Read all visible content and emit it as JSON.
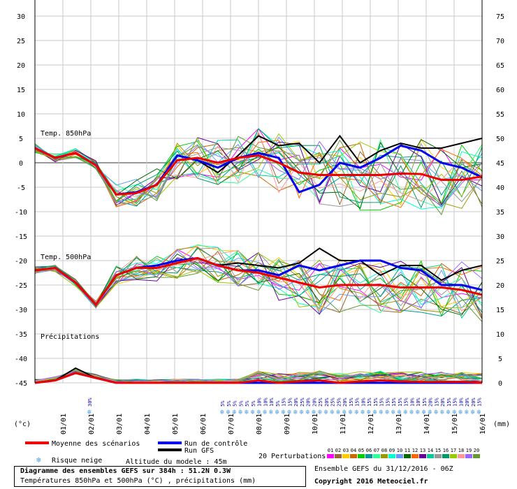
{
  "chart_data": {
    "type": "line",
    "title": "Diagramme des ensembles GEFS sur 384h : 51.2N 0.3W",
    "subtitle": "Températures 850hPa et 500hPa (°C) , précipitations (mm)",
    "left_axis_unit": "(°c)",
    "right_axis_unit": "(mm)",
    "left_axis_ticks": [
      30,
      25,
      20,
      15,
      10,
      5,
      0,
      -5,
      -10,
      -15,
      -20,
      -25,
      -30,
      -35,
      -40,
      -45
    ],
    "right_axis_ticks": [
      75,
      70,
      65,
      60,
      55,
      50,
      45,
      40,
      35,
      30,
      25,
      20,
      15,
      10,
      5,
      0
    ],
    "ylim_temp": [
      -45,
      30
    ],
    "ylim_precip": [
      0,
      75
    ],
    "x_labels": [
      "01/01",
      "02/01",
      "03/01",
      "04/01",
      "05/01",
      "06/01",
      "07/01",
      "08/01",
      "09/01",
      "10/01",
      "11/01",
      "12/01",
      "13/01",
      "14/01",
      "15/01",
      "16/01"
    ],
    "panel_labels": {
      "t850": "Temp. 850hPa",
      "t500": "Temp. 500hPa",
      "precip": "Précipitations"
    },
    "snow_risk": [
      "30%",
      "5%",
      "5%",
      "5%",
      "5%",
      "5%",
      "5%",
      "10%",
      "10%",
      "10%",
      "5%",
      "15%",
      "15%",
      "20%",
      "25%",
      "20%",
      "20%",
      "25%",
      "20%",
      "25%",
      "25%",
      "20%",
      "15%",
      "15%",
      "10%",
      "15%",
      "15%",
      "15%",
      "15%",
      "15%",
      "15%",
      "15%",
      "10%",
      "10%",
      "15%",
      "20%",
      "15%",
      "20%",
      "15%",
      "15%",
      "10%",
      "20%",
      "20%",
      "15%"
    ],
    "series": [
      {
        "name": "Moyenne des scénarios",
        "color": "#ee0000",
        "t850": [
          3,
          1,
          2,
          -0.5,
          -6.5,
          -6.2,
          -4.5,
          0.5,
          1,
          0,
          1,
          1.5,
          0,
          -2,
          -2.5,
          -2.5,
          -2.5,
          -2.5,
          -2.2,
          -2.3,
          -3.5,
          -3.5,
          -2.8
        ],
        "t500": [
          -22,
          -21.5,
          -24.5,
          -29,
          -23,
          -21.5,
          -21.5,
          -20.5,
          -19.5,
          -21,
          -22,
          -22.5,
          -23.5,
          -24.5,
          -25.5,
          -25,
          -25,
          -25,
          -25.5,
          -25.5,
          -25.5,
          -26,
          -27
        ],
        "precip": [
          0,
          0.5,
          2,
          1,
          0,
          0,
          0,
          0,
          0,
          0,
          0,
          0.5,
          0,
          0.3,
          0.5,
          0,
          0.3,
          0.5,
          0.3,
          0.2,
          0.2,
          0.2,
          0
        ]
      },
      {
        "name": "Run de contrôle",
        "color": "#0000ee",
        "t850": [
          3,
          1,
          2,
          -0.5,
          -6.5,
          -6,
          -4.5,
          1.5,
          0.5,
          -1,
          1,
          2,
          1,
          -6,
          -4.5,
          0,
          -1,
          1,
          3.5,
          2.5,
          0,
          -1,
          -3
        ],
        "t500": [
          -22,
          -21.5,
          -24.5,
          -29,
          -23,
          -21.5,
          -21,
          -20,
          -19.5,
          -21,
          -22,
          -22,
          -23,
          -21,
          -22,
          -21,
          -20,
          -20,
          -21.5,
          -22,
          -25,
          -25,
          -26
        ],
        "precip": [
          0,
          0.5,
          2,
          1,
          0,
          0,
          0,
          0,
          0,
          0,
          0,
          0,
          0,
          0,
          0,
          0,
          0,
          0,
          0,
          0,
          0,
          0,
          0
        ]
      },
      {
        "name": "Run GFS",
        "color": "#000000",
        "t850": [
          3,
          1,
          2,
          -0.5,
          -6.5,
          -6,
          -4.5,
          1.5,
          0.5,
          -2,
          1.5,
          5.5,
          3.5,
          4,
          0,
          5.5,
          0,
          2.5,
          4,
          3,
          3,
          4,
          5
        ],
        "t500": [
          -22,
          -21.5,
          -24.5,
          -29,
          -23,
          -21.5,
          -21,
          -20,
          -19.5,
          -21,
          -20.5,
          -21,
          -21.5,
          -20.5,
          -17.5,
          -20,
          -20,
          -23,
          -21,
          -21,
          -24,
          -22,
          -21
        ],
        "precip": [
          0,
          0.5,
          3,
          1,
          0,
          0,
          0,
          0,
          0,
          0,
          0,
          0,
          0,
          0,
          0.5,
          0,
          0,
          0,
          0,
          0,
          0,
          0,
          0
        ]
      }
    ],
    "ensemble_label": "20 Perturbations",
    "member_ids": [
      "01",
      "02",
      "03",
      "04",
      "05",
      "06",
      "07",
      "08",
      "09",
      "10",
      "11",
      "12",
      "13",
      "14",
      "15",
      "16",
      "17",
      "18",
      "19",
      "20"
    ],
    "member_colors": [
      "#ff00ff",
      "#996633",
      "#ffcc00",
      "#cc6600",
      "#00cc00",
      "#009999",
      "#33ff99",
      "#999900",
      "#00ffcc",
      "#6699ff",
      "#006600",
      "#ff6600",
      "#660099",
      "#00cc99",
      "#999999",
      "#009966",
      "#99cc00",
      "#ff9999",
      "#9966ff",
      "#669933"
    ],
    "legend_snow": "Risque neige",
    "model_altitude": "Altitude du modele : 45m",
    "ensemble_run": "Ensemble GEFS du 31/12/2016 - 06Z",
    "copyright": "Copyright 2016 Meteociel.fr"
  }
}
